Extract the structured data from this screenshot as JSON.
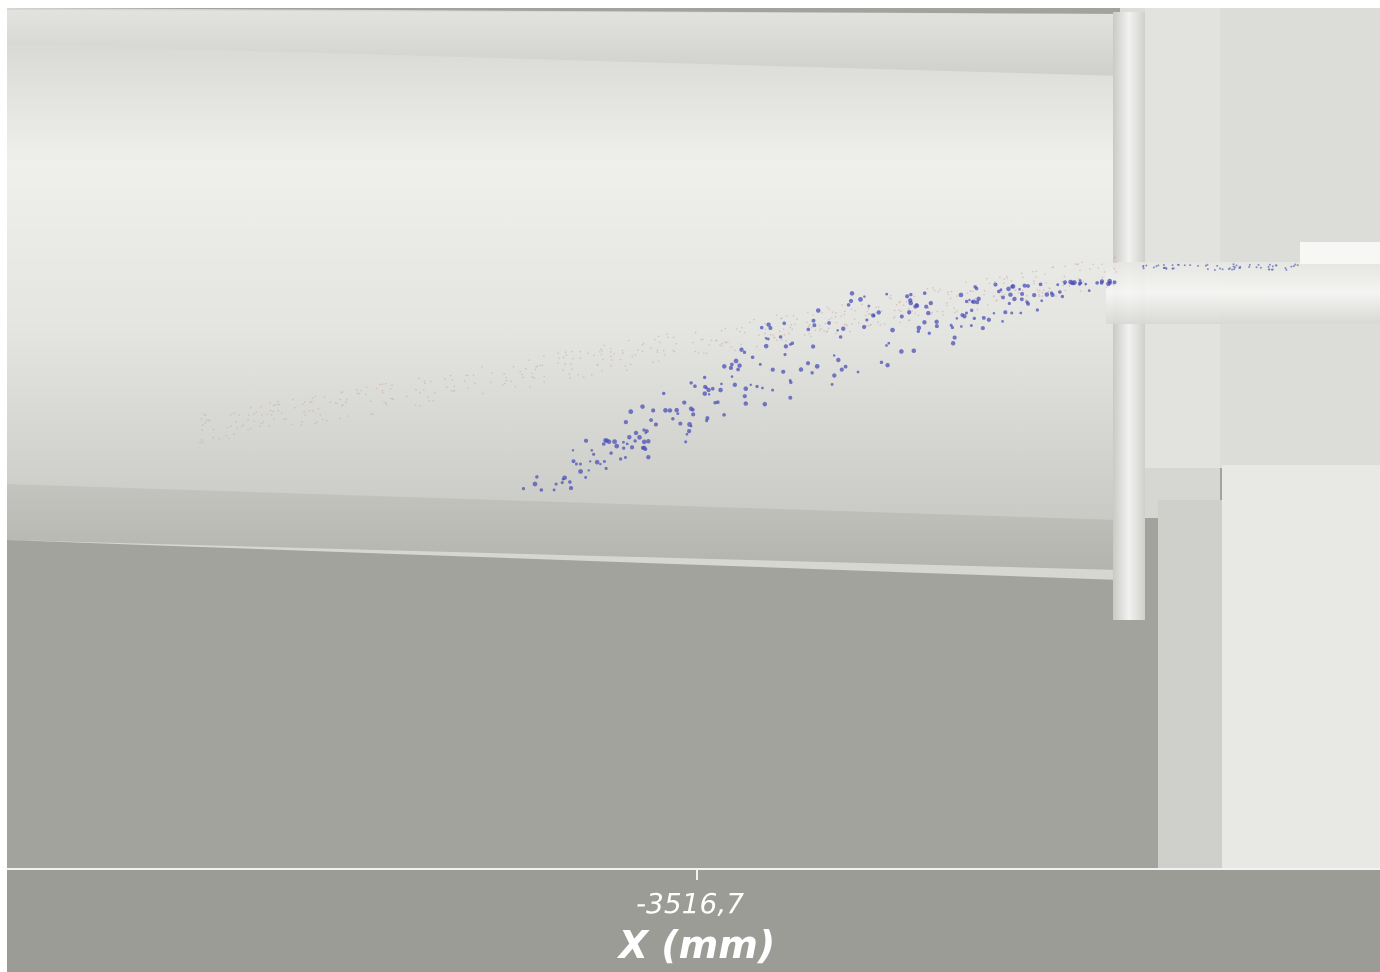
{
  "axis": {
    "ticks": [
      {
        "value": -3516.7,
        "label": "-3516,7"
      }
    ],
    "title": "X (mm)"
  }
}
